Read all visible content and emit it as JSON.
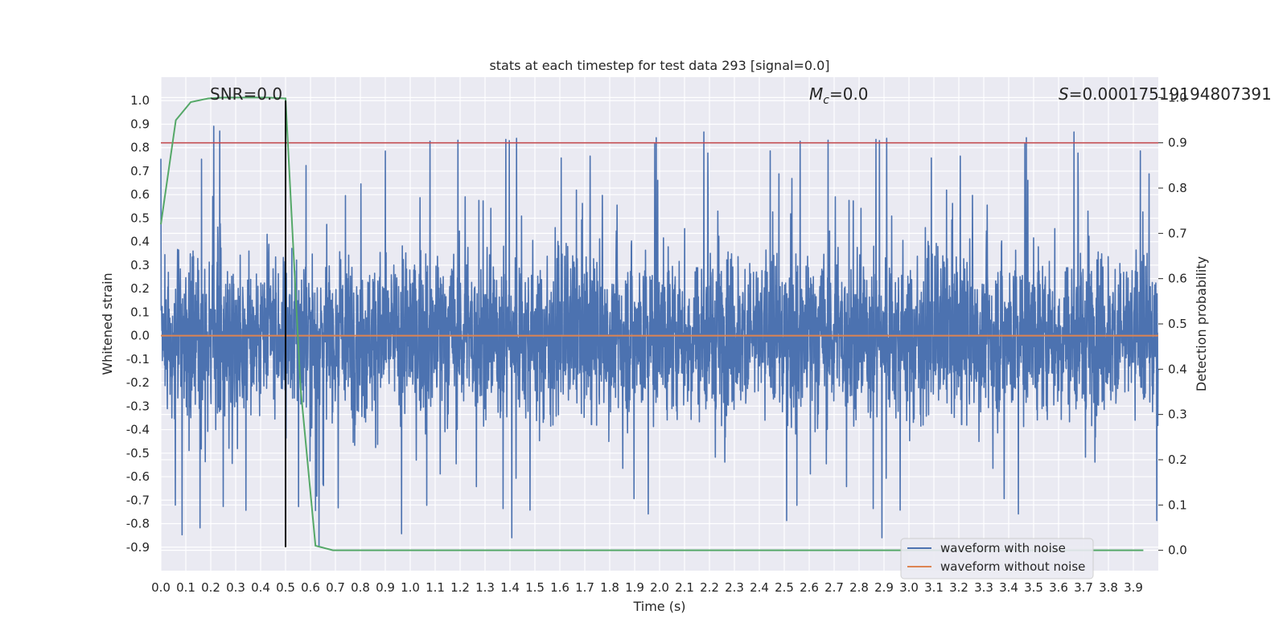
{
  "chart_data": {
    "type": "line",
    "title": "stats at each timestep for test data 293 [signal=0.0]",
    "xlabel": "Time (s)",
    "ylabel": "Whitened strain",
    "y2label": "Detection probability",
    "xlim": [
      0.0,
      4.0
    ],
    "ylim": [
      -1.0,
      1.1
    ],
    "y2lim": [
      -0.045,
      1.045
    ],
    "x_ticks": [
      "0.0",
      "0.1",
      "0.2",
      "0.3",
      "0.4",
      "0.5",
      "0.6",
      "0.7",
      "0.8",
      "0.9",
      "1.0",
      "1.1",
      "1.2",
      "1.3",
      "1.4",
      "1.5",
      "1.6",
      "1.7",
      "1.8",
      "1.9",
      "2.0",
      "2.1",
      "2.2",
      "2.3",
      "2.4",
      "2.5",
      "2.6",
      "2.7",
      "2.8",
      "2.9",
      "3.0",
      "3.1",
      "3.2",
      "3.3",
      "3.4",
      "3.5",
      "3.6",
      "3.7",
      "3.8",
      "3.9"
    ],
    "y_ticks": [
      "-0.9",
      "-0.8",
      "-0.7",
      "-0.6",
      "-0.5",
      "-0.4",
      "-0.3",
      "-0.2",
      "-0.1",
      "0.0",
      "0.1",
      "0.2",
      "0.3",
      "0.4",
      "0.5",
      "0.6",
      "0.7",
      "0.8",
      "0.9",
      "1.0"
    ],
    "y2_ticks": [
      "0.0",
      "0.1",
      "0.2",
      "0.3",
      "0.4",
      "0.5",
      "0.6",
      "0.7",
      "0.8",
      "0.9",
      "1.0"
    ],
    "grid": true,
    "annotations": {
      "snr": "SNR=0.0",
      "mc_symbol": "M",
      "mc_sub": "c",
      "mc_value": "=0.0",
      "s_symbol": "S",
      "s_value": "=0.00017519194807391"
    },
    "series": [
      {
        "name": "waveform with noise",
        "color": "#4c72b0",
        "axis": "left",
        "description": "noise-dominated whitened strain, roughly -0.9 to 1.0",
        "envelope_bounds": [
          -0.9,
          1.0
        ]
      },
      {
        "name": "waveform without noise",
        "color": "#dd8452",
        "axis": "left",
        "x": [
          0.0,
          4.0
        ],
        "y": [
          0.0,
          0.0
        ]
      },
      {
        "name": "detection probability",
        "color": "#55a868",
        "axis": "right",
        "x": [
          0.0,
          0.06,
          0.12,
          0.19,
          0.25,
          0.31,
          0.37,
          0.43,
          0.5,
          0.56,
          0.62,
          0.69,
          0.75,
          1.0,
          2.0,
          3.0,
          3.94
        ],
        "y": [
          0.72,
          0.95,
          0.99,
          0.998,
          1.0,
          1.0,
          1.0,
          1.0,
          0.998,
          0.36,
          0.01,
          0.0,
          0.0,
          0.0,
          0.0,
          0.0,
          0.0
        ]
      }
    ],
    "threshold": {
      "axis": "right",
      "value": 0.9,
      "color": "#c44e52"
    },
    "marker_line": {
      "x": 0.5,
      "y_from": -0.9,
      "y_to": 1.0,
      "color": "#000000"
    },
    "legend": {
      "placement": "bottom-right",
      "entries": [
        {
          "label": "waveform with noise",
          "color": "#4c72b0"
        },
        {
          "label": "waveform without noise",
          "color": "#dd8452"
        }
      ]
    }
  }
}
